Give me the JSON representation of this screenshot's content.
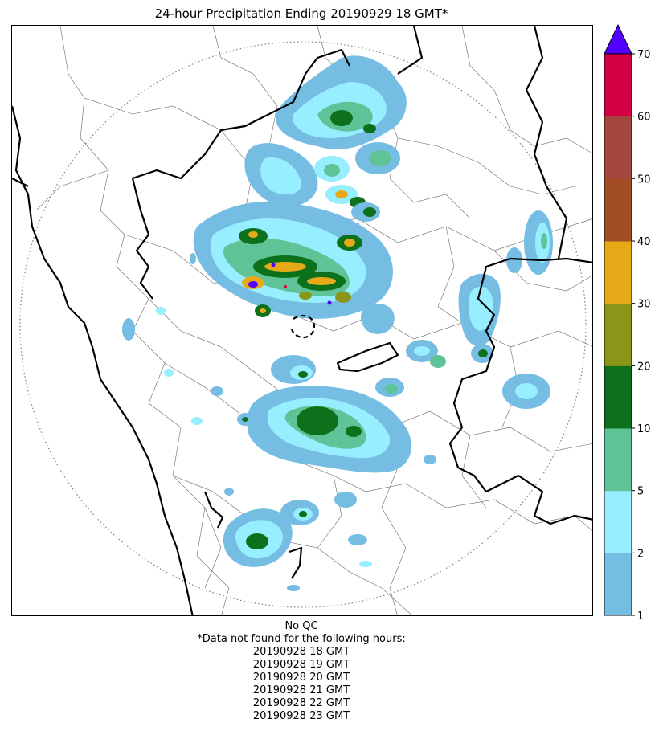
{
  "title": "24-hour Precipitation Ending 20190929 18 GMT*",
  "colorbar": {
    "levels": [
      1,
      2,
      5,
      10,
      20,
      30,
      40,
      50,
      60,
      70
    ],
    "colors": [
      "#76bde3",
      "#97eefe",
      "#5ec397",
      "#0d711b",
      "#8b9618",
      "#e6aa19",
      "#a24d26",
      "#a4483f",
      "#d50043"
    ],
    "extend_color": "#5400ff",
    "tick_labels": [
      "1",
      "2",
      "5",
      "10",
      "20",
      "30",
      "40",
      "50",
      "60",
      "70"
    ]
  },
  "footer": {
    "qc_note": "No QC",
    "missing_note": "*Data not found for the following hours:",
    "missing_hours": [
      "20190928 18 GMT",
      "20190928 19 GMT",
      "20190928 20 GMT",
      "20190928 21 GMT",
      "20190928 22 GMT",
      "20190928 23 GMT"
    ]
  },
  "map_style": {
    "range_ring_color": "#888888",
    "coastline_color": "#000000",
    "boundary_color": "#555555"
  }
}
